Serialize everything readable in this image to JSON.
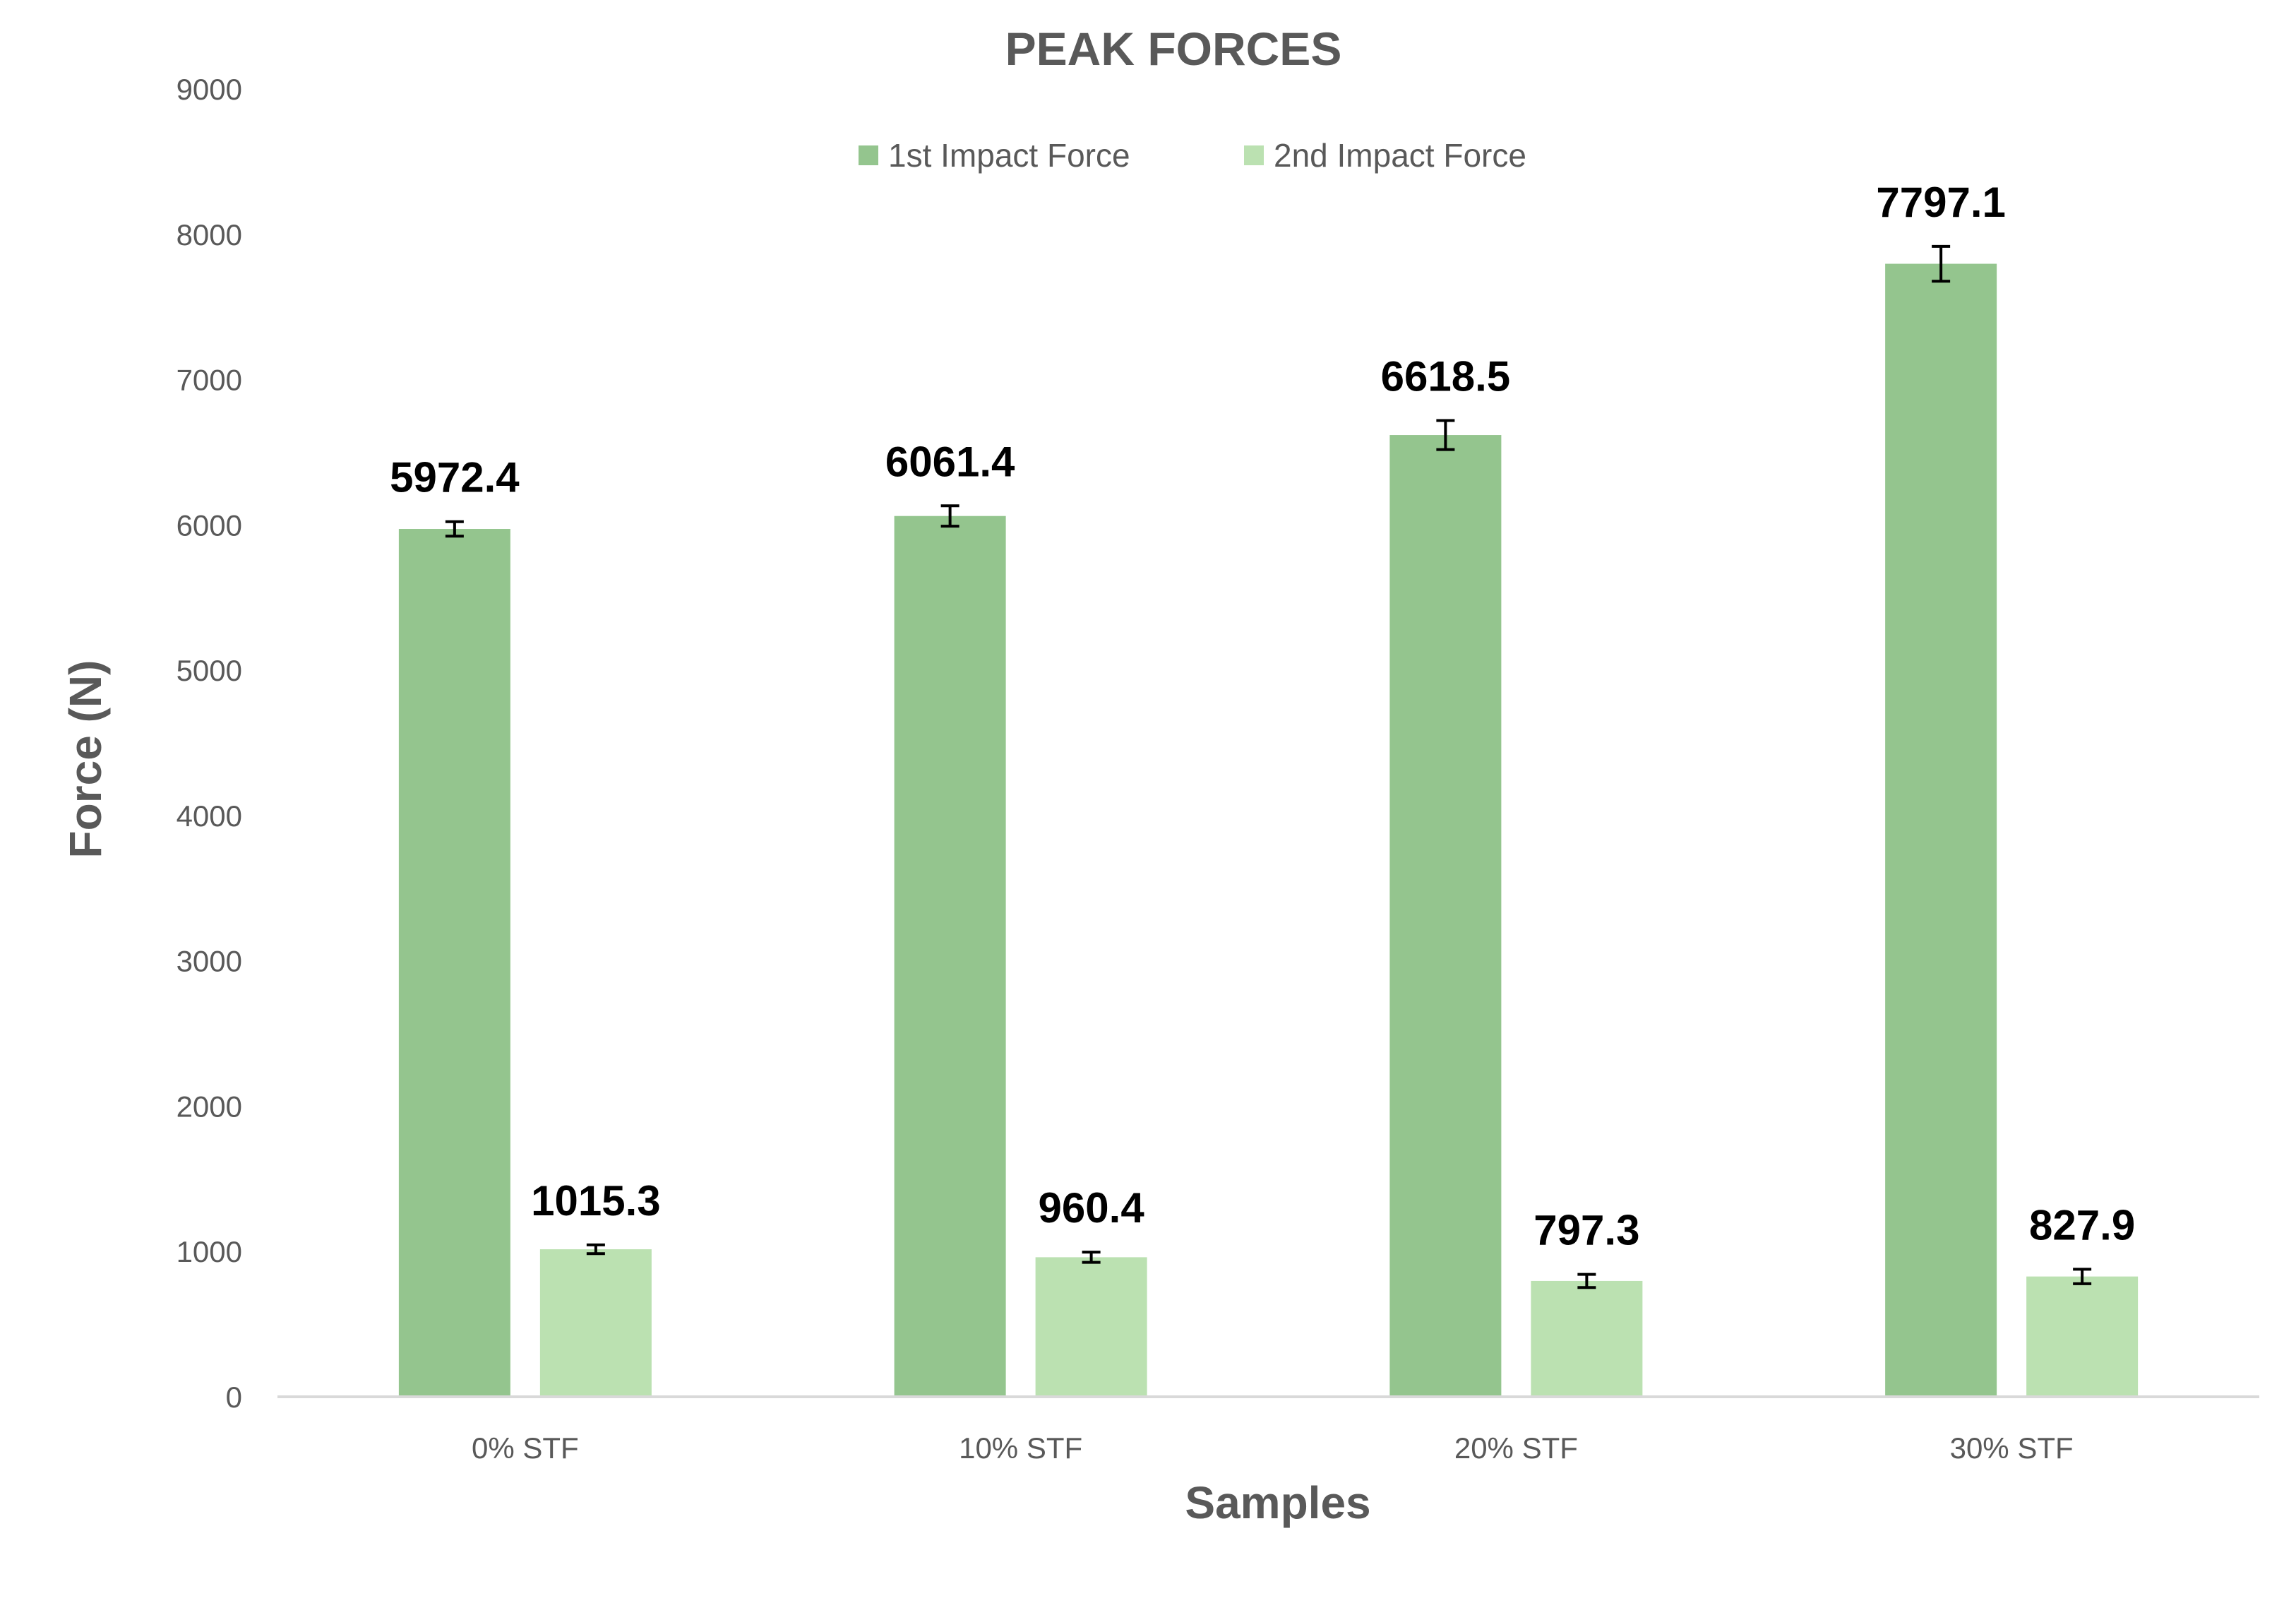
{
  "chart_data": {
    "type": "bar",
    "title": "PEAK FORCES",
    "xlabel": "Samples",
    "ylabel": "Force (N)",
    "ylim": [
      0,
      9000
    ],
    "yticks": [
      "0",
      "1000",
      "2000",
      "3000",
      "4000",
      "5000",
      "6000",
      "7000",
      "8000",
      "9000"
    ],
    "categories": [
      "0% STF",
      "10% STF",
      "20% STF",
      "30% STF"
    ],
    "series": [
      {
        "name": "1st Impact Force",
        "color": "#94c58e",
        "values": [
          5972.4,
          6061.4,
          6618.5,
          7797.1
        ],
        "labels": [
          "5972.4",
          "6061.4",
          "6618.5",
          "7797.1"
        ],
        "error": [
          50,
          70,
          100,
          120
        ]
      },
      {
        "name": "2nd Impact Force",
        "color": "#bbe1b1",
        "values": [
          1015.3,
          960.4,
          797.3,
          827.9
        ],
        "labels": [
          "1015.3",
          "960.4",
          "797.3",
          "827.9"
        ],
        "error": [
          30,
          35,
          45,
          50
        ]
      }
    ],
    "grid": false,
    "legend_position": "top"
  }
}
